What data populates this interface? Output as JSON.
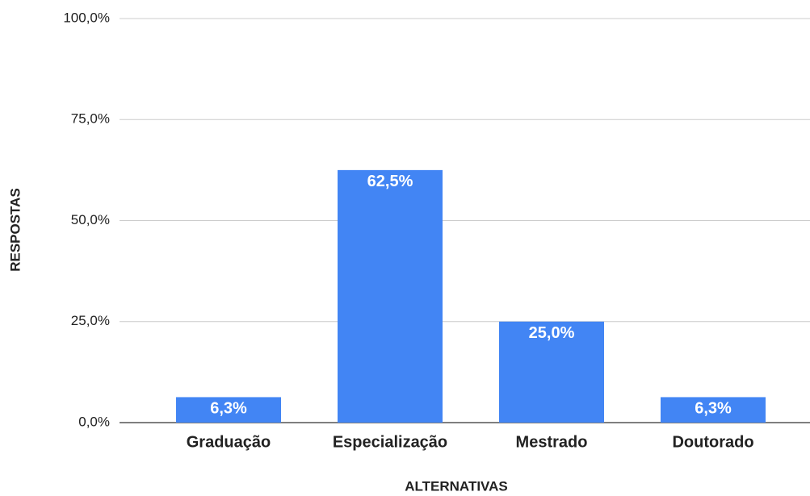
{
  "chart_data": {
    "type": "bar",
    "x_label": "ALTERNATIVAS",
    "y_label": "RESPOSTAS",
    "categories": [
      "Graduação",
      "Especialização",
      "Mestrado",
      "Doutorado"
    ],
    "values": [
      6.3,
      62.5,
      25.0,
      6.3
    ],
    "value_labels": [
      "6,3%",
      "62,5%",
      "25,0%",
      "6,3%"
    ],
    "color": "#4285f4",
    "ylim": [
      0,
      100
    ],
    "yticks": [
      {
        "value": 0,
        "label": "0,0%"
      },
      {
        "value": 25,
        "label": "25,0%"
      },
      {
        "value": 50,
        "label": "50,0%"
      },
      {
        "value": 75,
        "label": "75,0%"
      },
      {
        "value": 100,
        "label": "100,0%"
      }
    ],
    "grid": true
  }
}
